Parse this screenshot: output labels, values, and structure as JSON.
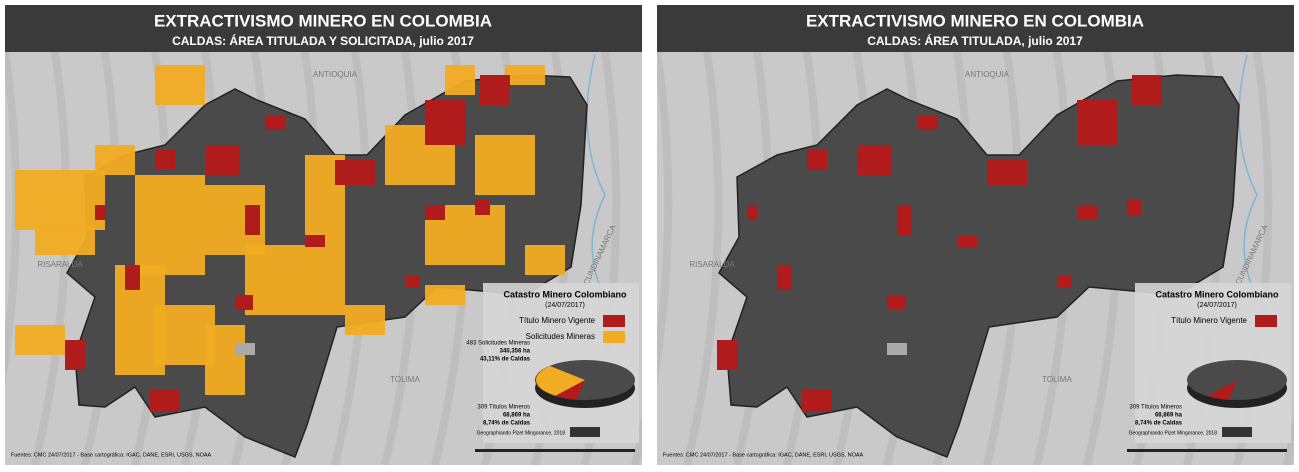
{
  "panels": [
    {
      "title": "EXTRACTIVISMO MINERO EN COLOMBIA",
      "subtitle": "CALDAS: ÁREA TITULADA Y SOLICITADA, julio 2017",
      "places": [
        "ANTIOQUIA",
        "RISARALDA",
        "TOLIMA",
        "CUNDINAMARCA"
      ],
      "legend": {
        "title": "Catastro Minero Colombiano",
        "date": "(24/07/2017)",
        "items": [
          "Título Minero Vigente",
          "Solicitudes Mineras"
        ]
      },
      "stats": [
        [
          "483 Solicitudes Mineras",
          "340,356 ha",
          "43,11% de Caldas"
        ],
        [
          "309 Títulos Mineros",
          "68,869 ha",
          "8,74% de Caldas"
        ]
      ],
      "sources": "Fuentes: CMC 24/07/2017 - Base cartográfica: IGAC, DANE, ESRI, USGS, NOAA",
      "credit": "Geographiando Pizet Mingorance, 2018"
    },
    {
      "title": "EXTRACTIVISMO MINERO EN COLOMBIA",
      "subtitle": "CALDAS: ÁREA TITULADA, julio 2017",
      "places": [
        "ANTIOQUIA",
        "RISARALDA",
        "TOLIMA",
        "CUNDINAMARCA"
      ],
      "legend": {
        "title": "Catastro Minero Colombiano",
        "date": "(24/07/2017)",
        "items": [
          "Título Minero Vigente"
        ]
      },
      "stats": [
        [
          "309 Títulos Mineros",
          "68,869 ha",
          "8,74% de Caldas"
        ]
      ],
      "sources": "Fuentes: CMC 24/07/2017 - Base cartográfica: IGAC, DANE, ESRI, USGS, NOAA",
      "credit": "Geographiando Pizet Mingorance, 2018"
    }
  ]
}
